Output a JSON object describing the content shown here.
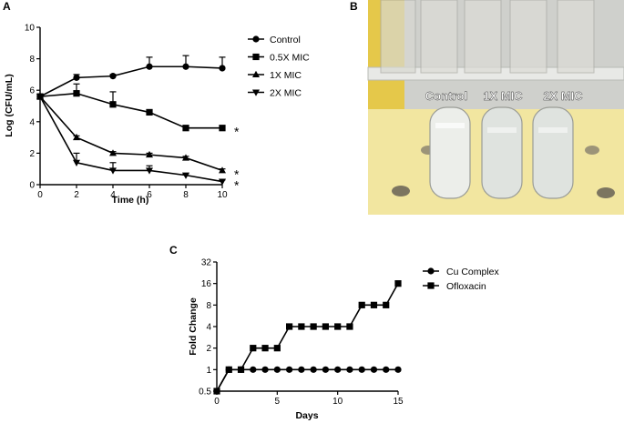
{
  "panels": {
    "a": "A",
    "b": "B",
    "c": "C"
  },
  "photo": {
    "labels": [
      "Control",
      "1X MIC",
      "2X MIC"
    ],
    "colors": {
      "background": "#cfd0cc",
      "tape": "#e5c84a",
      "rack": "#f2e6a0",
      "tube_control": "#eceeea",
      "tube_clear": "#dfe3df"
    }
  },
  "chart_data": [
    {
      "type": "line",
      "xlabel": "Time (h)",
      "ylabel": "Log  (CFU/mL)",
      "xlim": [
        0,
        10
      ],
      "ylim": [
        0,
        10
      ],
      "xticks": [
        "0",
        "2",
        "4",
        "6",
        "8",
        "10"
      ],
      "yticks": [
        "0",
        "2",
        "4",
        "6",
        "8",
        "10"
      ],
      "legend_position": "top-right",
      "series": [
        {
          "name": "Control",
          "marker": "circle",
          "x": [
            0,
            2,
            4,
            6,
            8,
            10
          ],
          "y": [
            5.6,
            6.8,
            6.9,
            7.5,
            7.5,
            7.4
          ],
          "err": [
            0,
            0.2,
            0.1,
            0.6,
            0.7,
            0.7
          ]
        },
        {
          "name": "0.5X MIC",
          "marker": "square",
          "x": [
            0,
            2,
            4,
            6,
            8,
            10
          ],
          "y": [
            5.6,
            5.8,
            5.1,
            4.6,
            3.6,
            3.6
          ],
          "err": [
            0,
            0.6,
            0.8,
            0.1,
            0.1,
            0.1
          ],
          "annotation": "*"
        },
        {
          "name": "1X MIC",
          "marker": "triangle-up",
          "x": [
            0,
            2,
            4,
            6,
            8,
            10
          ],
          "y": [
            5.6,
            3.0,
            2.0,
            1.9,
            1.7,
            0.9
          ],
          "err": [
            0,
            0.1,
            0.1,
            0.1,
            0.1,
            0.1
          ],
          "annotation": "*"
        },
        {
          "name": "2X MIC",
          "marker": "triangle-down",
          "x": [
            0,
            2,
            4,
            6,
            8,
            10
          ],
          "y": [
            5.6,
            1.4,
            0.9,
            0.9,
            0.6,
            0.2
          ],
          "err": [
            0,
            0.6,
            0.5,
            0.3,
            0.1,
            0.1
          ],
          "annotation": "*"
        }
      ]
    },
    {
      "type": "line",
      "xlabel": "Days",
      "ylabel": "Fold Change",
      "xlim": [
        0,
        15
      ],
      "ylim": [
        0.5,
        32
      ],
      "yscale": "log2",
      "xticks": [
        "0",
        "5",
        "10",
        "15"
      ],
      "yticks": [
        "0.5",
        "1",
        "2",
        "4",
        "8",
        "16",
        "32"
      ],
      "legend_position": "top-right",
      "series": [
        {
          "name": "Cu Complex",
          "marker": "circle",
          "x": [
            0,
            1,
            2,
            3,
            4,
            5,
            6,
            7,
            8,
            9,
            10,
            11,
            12,
            13,
            14,
            15
          ],
          "y": [
            0.5,
            1,
            1,
            1,
            1,
            1,
            1,
            1,
            1,
            1,
            1,
            1,
            1,
            1,
            1,
            1
          ]
        },
        {
          "name": "Ofloxacin",
          "marker": "square",
          "x": [
            0,
            1,
            2,
            3,
            4,
            5,
            6,
            7,
            8,
            9,
            10,
            11,
            12,
            13,
            14,
            15
          ],
          "y": [
            0.5,
            1,
            1,
            2,
            2,
            2,
            4,
            4,
            4,
            4,
            4,
            4,
            8,
            8,
            8,
            16
          ]
        }
      ]
    }
  ]
}
